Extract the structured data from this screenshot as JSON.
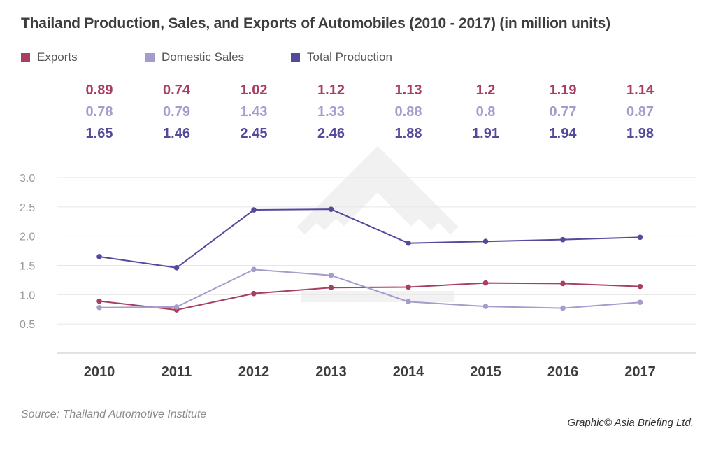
{
  "title": "Thailand Production, Sales, and Exports of Automobiles (2010 - 2017) (in million units)",
  "source": "Source: Thailand Automotive Institute",
  "credit": "Graphic© Asia Briefing Ltd.",
  "colors": {
    "exports": "#a83f62",
    "domestic": "#a39ccc",
    "production": "#544a9c",
    "grid": "#e6e6e6",
    "axis_text": "#999999",
    "year_text": "#3d3d3d"
  },
  "chart_data": {
    "type": "line",
    "title": "Thailand Production, Sales, and Exports of Automobiles (2010 - 2017) (in million units)",
    "xlabel": "",
    "ylabel": "",
    "categories": [
      "2010",
      "2011",
      "2012",
      "2013",
      "2014",
      "2015",
      "2016",
      "2017"
    ],
    "ylim": [
      0,
      3.0
    ],
    "yticks": [
      "3.0",
      "2.5",
      "2.0",
      "1.5",
      "1.0",
      "0.5"
    ],
    "ytick_values": [
      3.0,
      2.5,
      2.0,
      1.5,
      1.0,
      0.5
    ],
    "grid": true,
    "legend_position": "top-left",
    "series": [
      {
        "name": "Exports",
        "key": "exports",
        "values": [
          0.89,
          0.74,
          1.02,
          1.12,
          1.13,
          1.2,
          1.19,
          1.14
        ],
        "labels": [
          "0.89",
          "0.74",
          "1.02",
          "1.12",
          "1.13",
          "1.2",
          "1.19",
          "1.14"
        ]
      },
      {
        "name": "Domestic Sales",
        "key": "domestic",
        "values": [
          0.78,
          0.79,
          1.43,
          1.33,
          0.88,
          0.8,
          0.77,
          0.87
        ],
        "labels": [
          "0.78",
          "0.79",
          "1.43",
          "1.33",
          "0.88",
          "0.8",
          "0.77",
          "0.87"
        ]
      },
      {
        "name": "Total Production",
        "key": "production",
        "values": [
          1.65,
          1.46,
          2.45,
          2.46,
          1.88,
          1.91,
          1.94,
          1.98
        ],
        "labels": [
          "1.65",
          "1.46",
          "2.45",
          "2.46",
          "1.88",
          "1.91",
          "1.94",
          "1.98"
        ]
      }
    ]
  }
}
